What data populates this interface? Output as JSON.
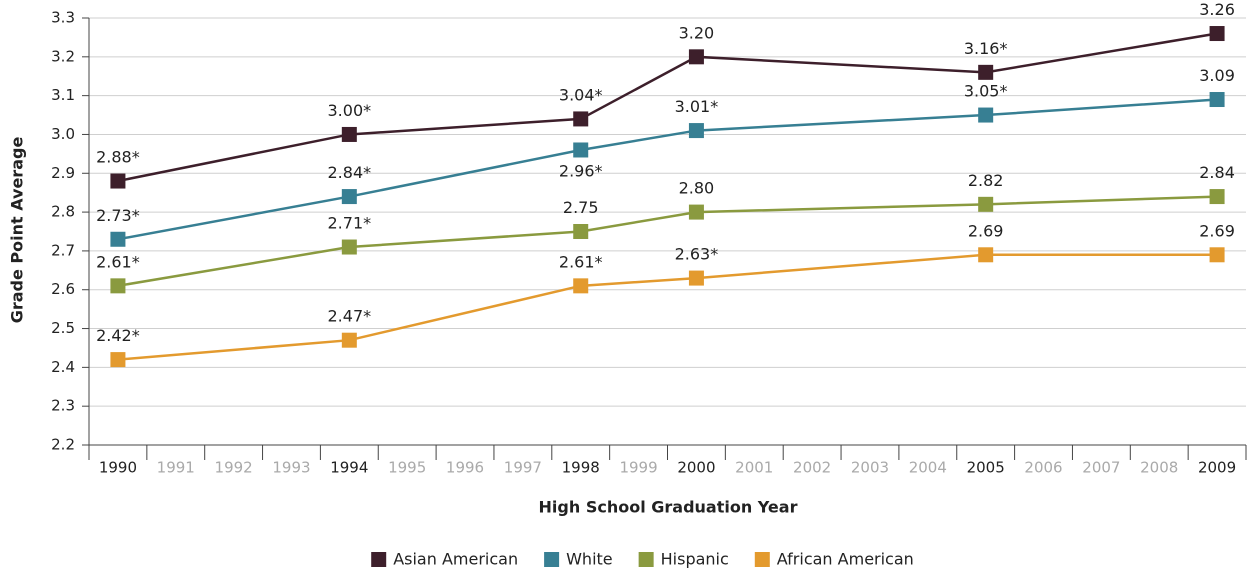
{
  "chart_data": {
    "type": "line",
    "x_label": "High School Graduation Year",
    "y_label": "Grade Point Average",
    "x": [
      1990,
      1994,
      1998,
      2000,
      2005,
      2009
    ],
    "xlim": [
      1989.5,
      2009.5
    ],
    "xticks": [
      1990,
      1991,
      1992,
      1993,
      1994,
      1995,
      1996,
      1997,
      1998,
      1999,
      2000,
      2001,
      2002,
      2003,
      2004,
      2005,
      2006,
      2007,
      2008,
      2009
    ],
    "ylim": [
      2.2,
      3.3
    ],
    "yticks": [
      2.2,
      2.3,
      2.4,
      2.5,
      2.6,
      2.7,
      2.8,
      2.9,
      {
        "value": 3,
        "label": "3.0"
      },
      3.1,
      3.2,
      3.3
    ],
    "grid": true,
    "legend": "bottom",
    "series": [
      {
        "name": "Asian American",
        "color": "#3d1f2b",
        "values": [
          2.88,
          3.0,
          3.04,
          3.2,
          3.16,
          3.26
        ],
        "value_labels": [
          "2.88*",
          "3.00*",
          "3.04*",
          "3.20",
          "3.16*",
          "3.26"
        ]
      },
      {
        "name": "White",
        "color": "#377f93",
        "values": [
          2.73,
          2.84,
          2.96,
          3.01,
          3.05,
          3.09
        ],
        "value_labels": [
          "2.73*",
          "2.84*",
          "2.96*",
          "3.01*",
          "3.05*",
          "3.09"
        ]
      },
      {
        "name": "Hispanic",
        "color": "#8a9a3f",
        "values": [
          2.61,
          2.71,
          2.75,
          2.8,
          2.82,
          2.84
        ],
        "value_labels": [
          "2.61*",
          "2.71*",
          "2.75",
          "2.80",
          "2.82",
          "2.84"
        ]
      },
      {
        "name": "African American",
        "color": "#e39a2e",
        "values": [
          2.42,
          2.47,
          2.61,
          2.63,
          2.69,
          2.69
        ],
        "value_labels": [
          "2.42*",
          "2.47*",
          "2.61*",
          "2.63*",
          "2.69",
          "2.69"
        ]
      }
    ]
  }
}
